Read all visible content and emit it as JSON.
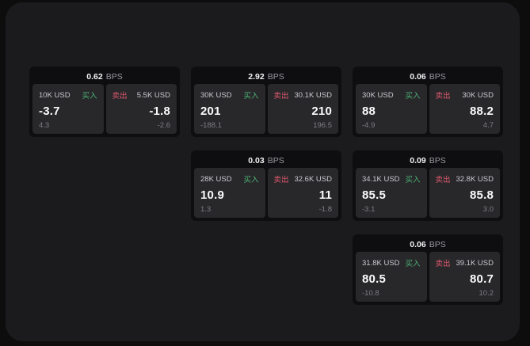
{
  "labels": {
    "buy": "买入",
    "sell": "卖出",
    "bps_unit": "BPS"
  },
  "colors": {
    "buy_green": "#4db374",
    "sell_red": "#e0596d",
    "page_bg": "#0d0d0e",
    "surface_bg": "#1b1b1d",
    "card_bg": "#0e0e10",
    "panel_bg": "#28282b"
  },
  "cards": [
    {
      "bps": "0.62",
      "buy": {
        "amount": "10K USD",
        "value": "-3.7",
        "sub": "4.3"
      },
      "sell": {
        "amount": "5.5K USD",
        "value": "-1.8",
        "sub": "-2.6"
      }
    },
    {
      "bps": "2.92",
      "buy": {
        "amount": "30K USD",
        "value": "201",
        "sub": "-188.1"
      },
      "sell": {
        "amount": "30.1K USD",
        "value": "210",
        "sub": "196.5"
      }
    },
    {
      "bps": "0.06",
      "buy": {
        "amount": "30K USD",
        "value": "88",
        "sub": "-4.9"
      },
      "sell": {
        "amount": "30K USD",
        "value": "88.2",
        "sub": "4.7"
      }
    },
    {
      "bps": "0.03",
      "buy": {
        "amount": "28K USD",
        "value": "10.9",
        "sub": "1.3"
      },
      "sell": {
        "amount": "32.6K USD",
        "value": "11",
        "sub": "-1.8"
      }
    },
    {
      "bps": "0.09",
      "buy": {
        "amount": "34.1K USD",
        "value": "85.5",
        "sub": "-3.1"
      },
      "sell": {
        "amount": "32.8K USD",
        "value": "85.8",
        "sub": "3.0"
      }
    },
    {
      "bps": "0.06",
      "buy": {
        "amount": "31.8K USD",
        "value": "80.5",
        "sub": "-10.8"
      },
      "sell": {
        "amount": "39.1K USD",
        "value": "80.7",
        "sub": "10.2"
      }
    }
  ]
}
